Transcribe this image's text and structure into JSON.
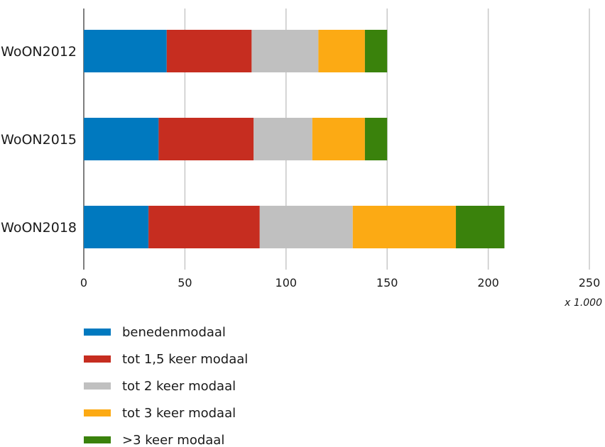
{
  "chart_data": {
    "type": "bar",
    "orientation": "horizontal",
    "stacked": true,
    "categories": [
      "WoON2012",
      "WoON2015",
      "WoON2018"
    ],
    "series": [
      {
        "name": "benedenmodaal",
        "color": "#0079bf",
        "values": [
          41,
          37,
          32
        ]
      },
      {
        "name": "tot 1,5 keer modaal",
        "color": "#c62d20",
        "values": [
          42,
          47,
          55
        ]
      },
      {
        "name": "tot 2 keer modaal",
        "color": "#c0c0c0",
        "values": [
          33,
          29,
          46
        ]
      },
      {
        "name": "tot 3 keer modaal",
        "color": "#fcaa14",
        "values": [
          23,
          26,
          51
        ]
      },
      {
        "name": ">3 keer modaal",
        "color": "#3a820c",
        "values": [
          11,
          11,
          24
        ]
      }
    ],
    "xlim": [
      0,
      250
    ],
    "xticks": [
      0,
      50,
      100,
      150,
      200,
      250
    ],
    "xunit": "x 1.000",
    "grid": true,
    "legend_position": "bottom-left"
  }
}
